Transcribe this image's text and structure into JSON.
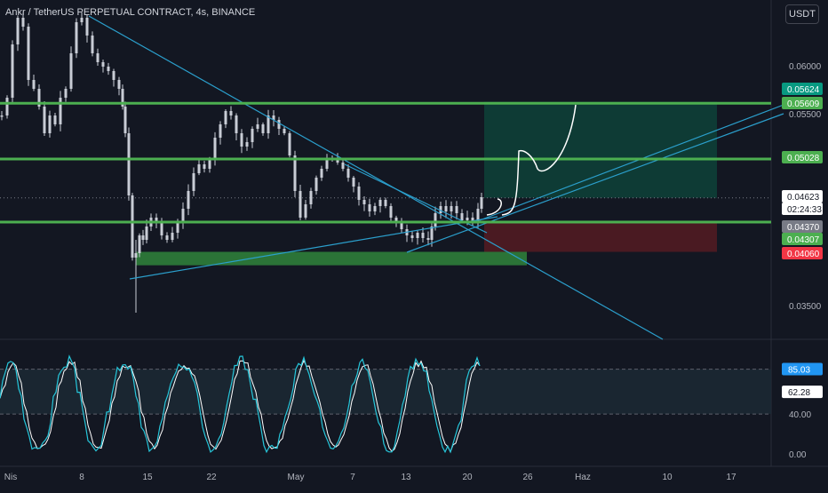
{
  "header": {
    "title": "Ankr / TetherUS PERPETUAL CONTRACT, 4s, BINANCE",
    "currency_button": "USDT"
  },
  "colors": {
    "background": "#131722",
    "candle": "#c8ccd5",
    "level_line": "#4caf50",
    "trend_line": "#2b9fcc",
    "target_zone": "#0e3b35",
    "stop_zone": "#4a1a22",
    "support_box": "#2f7d3a",
    "oscillator_fast": "#26c6da",
    "oscillator_slow": "#ffffff",
    "badge_green": "#4caf50",
    "badge_red": "#f23645",
    "badge_teal": "#089981",
    "badge_grey": "#787b86",
    "badge_cyan": "#2196f3"
  },
  "price_axis": {
    "ticks": [
      "0.06000",
      "0.05500",
      "0.03500"
    ],
    "badges": [
      {
        "label": "0.05624",
        "style": "teal",
        "value": 0.05624
      },
      {
        "label": "0.05609",
        "style": "green",
        "value": 0.05609
      },
      {
        "label": "0.05028",
        "style": "green",
        "value": 0.05028
      },
      {
        "label": "0.04623",
        "style": "current",
        "value": 0.04623
      },
      {
        "label": "02:24:33",
        "style": "countdown",
        "value": 0.04623
      },
      {
        "label": "0.04370",
        "style": "grey",
        "value": 0.0437
      },
      {
        "label": "0.04307",
        "style": "green",
        "value": 0.04307
      },
      {
        "label": "0.04060",
        "style": "red",
        "value": 0.0406
      }
    ]
  },
  "oscillator_axis": {
    "ticks": [
      "40.00",
      "0.00"
    ],
    "badges": [
      {
        "label": "85.03",
        "style": "cyan",
        "value": 85.03
      },
      {
        "label": "62.28",
        "style": "current",
        "value": 62.28
      }
    ]
  },
  "time_axis": {
    "labels": [
      "Nis",
      "8",
      "15",
      "22",
      "May",
      "7",
      "13",
      "20",
      "26",
      "Haz",
      "10",
      "17"
    ]
  },
  "chart_data": {
    "type": "candlestick",
    "price_range": [
      0.034,
      0.0625
    ],
    "oscillator_range": [
      0,
      100
    ],
    "horizontal_levels": [
      0.05609,
      0.05028,
      0.0437
    ],
    "position": {
      "entry": 0.04623,
      "target": 0.05624,
      "stop": 0.0406
    },
    "support_zone": [
      0.0392,
      0.0406
    ],
    "oscillator_bands": [
      40,
      85
    ]
  }
}
